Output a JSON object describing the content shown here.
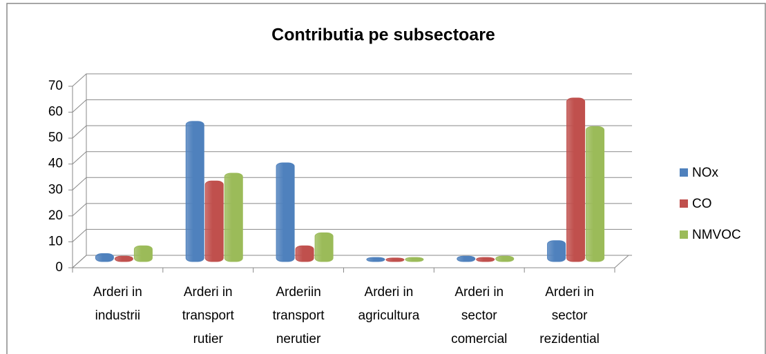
{
  "chart_data": {
    "type": "bar3d",
    "title": "Contributia pe subsectoare",
    "categories": [
      "Arderi in industrii",
      "Arderi in transport rutier",
      "Arderiin transport nerutier",
      "Arderi in agricultura",
      "Arderi in sector comercial",
      "Arderi in sector rezidential"
    ],
    "series": [
      {
        "name": "NOx",
        "color": "#4f81bd",
        "values": [
          2,
          53,
          37,
          0.5,
          1,
          7
        ]
      },
      {
        "name": "CO",
        "color": "#c0504d",
        "values": [
          1,
          30,
          5,
          0.3,
          0.5,
          62
        ]
      },
      {
        "name": "NMVOC",
        "color": "#9bbb59",
        "values": [
          5,
          33,
          10,
          0.5,
          1,
          51
        ]
      }
    ],
    "ylim": [
      0,
      70
    ],
    "yticks": [
      0,
      10,
      20,
      30,
      40,
      50,
      60,
      70
    ],
    "grid": true,
    "legend": "right"
  }
}
